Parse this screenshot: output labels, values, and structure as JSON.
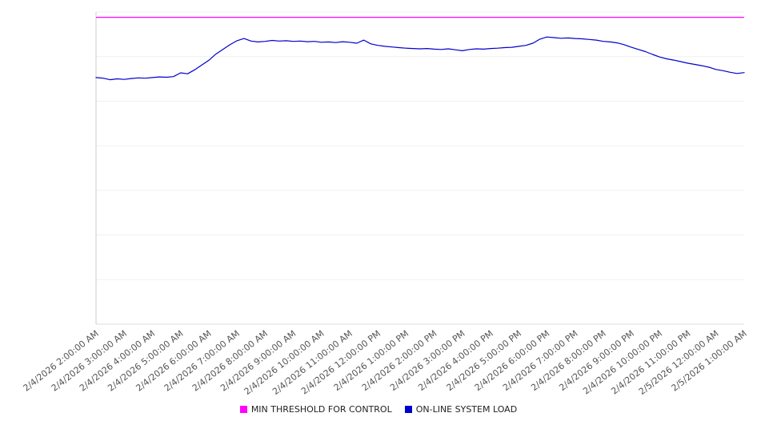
{
  "chart_data": {
    "type": "line",
    "title": "",
    "xlabel": "",
    "ylabel": "",
    "ylim": [
      0,
      100
    ],
    "grid": true,
    "legend_position": "bottom",
    "x_tick_labels": [
      "2/4/2026 2:00:00 AM",
      "2/4/2026 3:00:00 AM",
      "2/4/2026 4:00:00 AM",
      "2/4/2026 5:00:00 AM",
      "2/4/2026 6:00:00 AM",
      "2/4/2026 7:00:00 AM",
      "2/4/2026 8:00:00 AM",
      "2/4/2026 9:00:00 AM",
      "2/4/2026 10:00:00 AM",
      "2/4/2026 11:00:00 AM",
      "2/4/2026 12:00:00 PM",
      "2/4/2026 1:00:00 PM",
      "2/4/2026 2:00:00 PM",
      "2/4/2026 3:00:00 PM",
      "2/4/2026 4:00:00 PM",
      "2/4/2026 5:00:00 PM",
      "2/4/2026 6:00:00 PM",
      "2/4/2026 7:00:00 PM",
      "2/4/2026 8:00:00 PM",
      "2/4/2026 9:00:00 PM",
      "2/4/2026 10:00:00 PM",
      "2/4/2026 11:00:00 PM",
      "2/5/2026 12:00:00 AM",
      "2/5/2026 1:00:00 AM"
    ],
    "sample_interval_hours": 0.25,
    "series": [
      {
        "name": "MIN THRESHOLD FOR CONTROL",
        "color": "#ff00ff",
        "constant_value": 98.3
      },
      {
        "name": "ON-LINE SYSTEM LOAD",
        "color": "#0000cd",
        "values": [
          79.0,
          78.8,
          78.3,
          78.6,
          78.4,
          78.7,
          78.9,
          78.8,
          79.0,
          79.2,
          79.1,
          79.3,
          80.5,
          80.2,
          81.5,
          83.0,
          84.5,
          86.5,
          88.0,
          89.5,
          90.8,
          91.5,
          90.7,
          90.4,
          90.6,
          90.9,
          90.7,
          90.8,
          90.6,
          90.7,
          90.5,
          90.6,
          90.3,
          90.4,
          90.2,
          90.5,
          90.3,
          90.0,
          91.0,
          89.8,
          89.3,
          89.0,
          88.8,
          88.6,
          88.4,
          88.3,
          88.2,
          88.3,
          88.1,
          88.0,
          88.2,
          87.9,
          87.6,
          88.0,
          88.2,
          88.1,
          88.3,
          88.4,
          88.6,
          88.7,
          89.0,
          89.3,
          90.0,
          91.3,
          92.0,
          91.8,
          91.6,
          91.7,
          91.5,
          91.4,
          91.2,
          91.0,
          90.6,
          90.4,
          90.1,
          89.5,
          88.7,
          88.0,
          87.3,
          86.4,
          85.6,
          85.0,
          84.6,
          84.1,
          83.6,
          83.2,
          82.8,
          82.3,
          81.6,
          81.2,
          80.7,
          80.3,
          80.6
        ]
      }
    ]
  }
}
